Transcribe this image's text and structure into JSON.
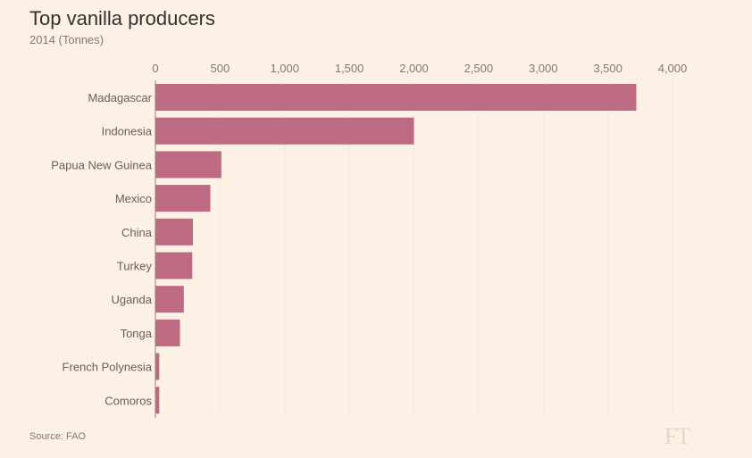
{
  "chart_data": {
    "type": "bar",
    "orientation": "horizontal",
    "title": "Top vanilla producers",
    "subtitle": "2014 (Tonnes)",
    "categories": [
      "Madagascar",
      "Indonesia",
      "Papua New Guinea",
      "Mexico",
      "China",
      "Turkey",
      "Uganda",
      "Tonga",
      "French Polynesia",
      "Comoros"
    ],
    "values": [
      3720,
      2000,
      510,
      425,
      290,
      285,
      220,
      190,
      30,
      30
    ],
    "xlim": [
      0,
      4000
    ],
    "xticks": [
      0,
      500,
      1000,
      1500,
      2000,
      2500,
      3000,
      3500,
      4000
    ],
    "xtick_labels": [
      "0",
      "500",
      "1,000",
      "1,500",
      "2,000",
      "2,500",
      "3,000",
      "3,500",
      "4,000"
    ],
    "grid": true,
    "bar_color": "#bd6a82",
    "source": "Source: FAO",
    "logo": "FT"
  }
}
